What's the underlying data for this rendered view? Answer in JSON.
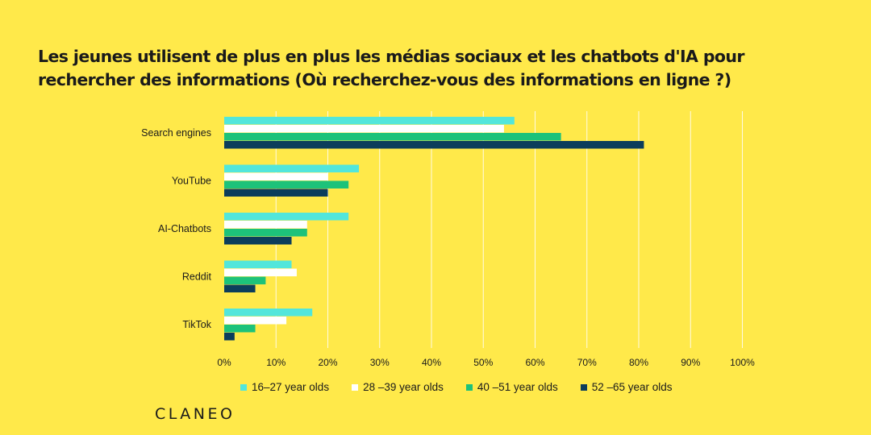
{
  "title": "Les jeunes utilisent de plus en plus les médias sociaux et les chatbots d'IA pour rechercher des informations (Où recherchez-vous des informations en ligne ?)",
  "logo": "CLANEO",
  "colors": {
    "background": "#FFE94A",
    "series": [
      "#52E6DB",
      "#FFFFFF",
      "#1DC27A",
      "#0C3D5B"
    ]
  },
  "chart_data": {
    "type": "bar",
    "orientation": "horizontal",
    "categories": [
      "Search engines",
      "YouTube",
      "AI-Chatbots",
      "Reddit",
      "TikTok"
    ],
    "series": [
      {
        "name": "16–27 year olds",
        "values": [
          56,
          26,
          24,
          13,
          17
        ]
      },
      {
        "name": "28 –39 year olds",
        "values": [
          54,
          20,
          16,
          14,
          12
        ]
      },
      {
        "name": "40 –51 year olds",
        "values": [
          65,
          24,
          16,
          8,
          6
        ]
      },
      {
        "name": "52 –65 year olds",
        "values": [
          81,
          20,
          13,
          6,
          2
        ]
      }
    ],
    "xticks": [
      "0%",
      "10%",
      "20%",
      "30%",
      "40%",
      "50%",
      "60%",
      "70%",
      "80%",
      "90%",
      "100%"
    ],
    "xlim": [
      0,
      100
    ],
    "grid": true,
    "legend_position": "bottom"
  }
}
